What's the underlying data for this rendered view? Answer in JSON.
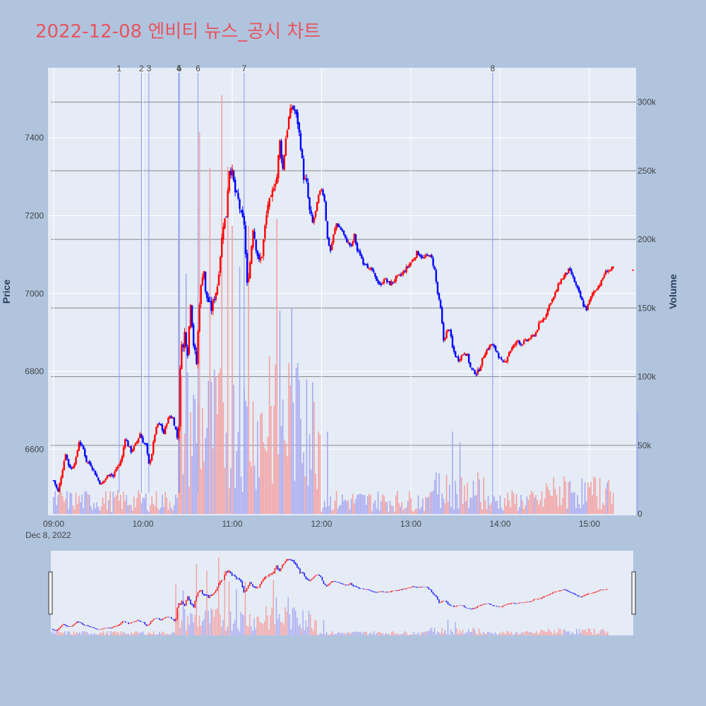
{
  "title": "2022-12-08 엔비티 뉴스_공시 차트",
  "colors": {
    "background": "#b0c4de",
    "plot_bg": "#e5ecf6",
    "title": "#e8545f",
    "up": "#ff0000",
    "down": "#0000ff",
    "up_volume": "#f4a0a0",
    "down_volume": "#a8a8f0",
    "news_line": "#8899ee"
  },
  "chart_data": {
    "type": "candlestick",
    "title": "2022-12-08 엔비티 뉴스_공시 차트",
    "xlabel": "",
    "ylabel": "Price",
    "y2label": "Volume",
    "x_ticks": [
      "09:00",
      "10:00",
      "11:00",
      "12:00",
      "13:00",
      "14:00",
      "15:00"
    ],
    "x_date_label": "Dec 8, 2022",
    "y_ticks": [
      6600,
      6800,
      7000,
      7200,
      7400
    ],
    "y2_ticks": [
      "0",
      "50k",
      "100k",
      "150k",
      "200k",
      "250k",
      "300k"
    ],
    "y2_tick_values": [
      0,
      50000,
      100000,
      150000,
      200000,
      250000,
      300000
    ],
    "ylim": [
      6430,
      7580
    ],
    "y2lim": [
      0,
      325000
    ],
    "x_range_minutes": [
      0,
      392
    ],
    "news_markers": [
      {
        "label": "1",
        "minute": 44
      },
      {
        "label": "2",
        "minute": 59
      },
      {
        "label": "3",
        "minute": 64
      },
      {
        "label": "4",
        "minute": 84
      },
      {
        "label": "5",
        "minute": 84.5
      },
      {
        "label": "6",
        "minute": 97
      },
      {
        "label": "7",
        "minute": 128
      },
      {
        "label": "8",
        "minute": 295
      }
    ],
    "price_path": [
      [
        0,
        6520
      ],
      [
        3,
        6490
      ],
      [
        6,
        6550
      ],
      [
        8,
        6590
      ],
      [
        10,
        6560
      ],
      [
        12,
        6550
      ],
      [
        15,
        6575
      ],
      [
        17,
        6620
      ],
      [
        20,
        6600
      ],
      [
        22,
        6570
      ],
      [
        25,
        6560
      ],
      [
        27,
        6545
      ],
      [
        30,
        6520
      ],
      [
        32,
        6510
      ],
      [
        35,
        6525
      ],
      [
        38,
        6540
      ],
      [
        40,
        6530
      ],
      [
        42,
        6550
      ],
      [
        44,
        6560
      ],
      [
        46,
        6580
      ],
      [
        48,
        6630
      ],
      [
        50,
        6610
      ],
      [
        52,
        6595
      ],
      [
        54,
        6605
      ],
      [
        56,
        6620
      ],
      [
        58,
        6640
      ],
      [
        60,
        6620
      ],
      [
        62,
        6610
      ],
      [
        64,
        6560
      ],
      [
        66,
        6590
      ],
      [
        68,
        6640
      ],
      [
        70,
        6665
      ],
      [
        72,
        6660
      ],
      [
        74,
        6640
      ],
      [
        76,
        6670
      ],
      [
        78,
        6685
      ],
      [
        80,
        6680
      ],
      [
        82,
        6650
      ],
      [
        83,
        6630
      ],
      [
        84,
        6660
      ],
      [
        85,
        6800
      ],
      [
        86,
        6880
      ],
      [
        87,
        6860
      ],
      [
        88,
        6900
      ],
      [
        90,
        6850
      ],
      [
        92,
        6980
      ],
      [
        94,
        6870
      ],
      [
        96,
        6820
      ],
      [
        98,
        6980
      ],
      [
        100,
        7050
      ],
      [
        101,
        7060
      ],
      [
        102,
        7000
      ],
      [
        104,
        6980
      ],
      [
        106,
        6960
      ],
      [
        108,
        6990
      ],
      [
        110,
        7020
      ],
      [
        112,
        7100
      ],
      [
        114,
        7180
      ],
      [
        116,
        7200
      ],
      [
        117,
        7270
      ],
      [
        118,
        7320
      ],
      [
        120,
        7310
      ],
      [
        122,
        7260
      ],
      [
        124,
        7240
      ],
      [
        126,
        7200
      ],
      [
        128,
        7180
      ],
      [
        129,
        7100
      ],
      [
        130,
        7020
      ],
      [
        132,
        7080
      ],
      [
        134,
        7170
      ],
      [
        136,
        7120
      ],
      [
        138,
        7080
      ],
      [
        140,
        7100
      ],
      [
        142,
        7170
      ],
      [
        144,
        7230
      ],
      [
        146,
        7240
      ],
      [
        148,
        7280
      ],
      [
        150,
        7300
      ],
      [
        151,
        7350
      ],
      [
        152,
        7390
      ],
      [
        154,
        7320
      ],
      [
        156,
        7400
      ],
      [
        158,
        7450
      ],
      [
        160,
        7480
      ],
      [
        162,
        7470
      ],
      [
        164,
        7440
      ],
      [
        166,
        7380
      ],
      [
        168,
        7300
      ],
      [
        170,
        7280
      ],
      [
        172,
        7210
      ],
      [
        174,
        7180
      ],
      [
        176,
        7210
      ],
      [
        178,
        7250
      ],
      [
        180,
        7270
      ],
      [
        182,
        7240
      ],
      [
        184,
        7140
      ],
      [
        186,
        7110
      ],
      [
        188,
        7150
      ],
      [
        190,
        7180
      ],
      [
        192,
        7170
      ],
      [
        194,
        7160
      ],
      [
        196,
        7140
      ],
      [
        198,
        7130
      ],
      [
        200,
        7120
      ],
      [
        202,
        7150
      ],
      [
        204,
        7110
      ],
      [
        206,
        7100
      ],
      [
        208,
        7080
      ],
      [
        210,
        7080
      ],
      [
        212,
        7060
      ],
      [
        214,
        7060
      ],
      [
        216,
        7040
      ],
      [
        218,
        7030
      ],
      [
        220,
        7020
      ],
      [
        222,
        7040
      ],
      [
        224,
        7030
      ],
      [
        226,
        7025
      ],
      [
        228,
        7030
      ],
      [
        230,
        7040
      ],
      [
        232,
        7045
      ],
      [
        234,
        7050
      ],
      [
        236,
        7060
      ],
      [
        238,
        7070
      ],
      [
        240,
        7080
      ],
      [
        242,
        7090
      ],
      [
        244,
        7105
      ],
      [
        246,
        7100
      ],
      [
        248,
        7090
      ],
      [
        250,
        7095
      ],
      [
        252,
        7100
      ],
      [
        254,
        7090
      ],
      [
        256,
        7060
      ],
      [
        258,
        7000
      ],
      [
        260,
        6960
      ],
      [
        262,
        6880
      ],
      [
        264,
        6900
      ],
      [
        266,
        6910
      ],
      [
        268,
        6860
      ],
      [
        270,
        6840
      ],
      [
        272,
        6830
      ],
      [
        274,
        6840
      ],
      [
        276,
        6850
      ],
      [
        278,
        6840
      ],
      [
        280,
        6810
      ],
      [
        282,
        6800
      ],
      [
        284,
        6795
      ],
      [
        286,
        6805
      ],
      [
        288,
        6830
      ],
      [
        290,
        6850
      ],
      [
        292,
        6860
      ],
      [
        294,
        6870
      ],
      [
        296,
        6860
      ],
      [
        298,
        6850
      ],
      [
        300,
        6830
      ],
      [
        302,
        6820
      ],
      [
        304,
        6830
      ],
      [
        306,
        6850
      ],
      [
        308,
        6860
      ],
      [
        310,
        6870
      ],
      [
        312,
        6880
      ],
      [
        314,
        6870
      ],
      [
        316,
        6875
      ],
      [
        318,
        6880
      ],
      [
        320,
        6885
      ],
      [
        322,
        6890
      ],
      [
        324,
        6900
      ],
      [
        326,
        6920
      ],
      [
        328,
        6930
      ],
      [
        330,
        6940
      ],
      [
        332,
        6960
      ],
      [
        334,
        6980
      ],
      [
        336,
        6990
      ],
      [
        338,
        7010
      ],
      [
        340,
        7030
      ],
      [
        342,
        7040
      ],
      [
        344,
        7050
      ],
      [
        346,
        7060
      ],
      [
        348,
        7050
      ],
      [
        350,
        7030
      ],
      [
        352,
        7010
      ],
      [
        354,
        6990
      ],
      [
        356,
        6970
      ],
      [
        358,
        6960
      ],
      [
        360,
        6980
      ],
      [
        362,
        7000
      ],
      [
        364,
        7010
      ],
      [
        366,
        7020
      ],
      [
        368,
        7030
      ],
      [
        370,
        7050
      ],
      [
        372,
        7060
      ],
      [
        374,
        7060
      ],
      [
        376,
        7065
      ]
    ],
    "volume_spikes": [
      {
        "minute": 84,
        "volume": 200000,
        "up": true
      },
      {
        "minute": 89,
        "volume": 175000,
        "up": false
      },
      {
        "minute": 98,
        "volume": 278000,
        "up": true
      },
      {
        "minute": 105,
        "volume": 252000,
        "up": true
      },
      {
        "minute": 113,
        "volume": 305000,
        "up": true
      },
      {
        "minute": 117,
        "volume": 253000,
        "up": true
      },
      {
        "minute": 120,
        "volume": 210000,
        "up": true
      },
      {
        "minute": 125,
        "volume": 180000,
        "up": false
      },
      {
        "minute": 131,
        "volume": 210000,
        "up": true
      },
      {
        "minute": 145,
        "volume": 115000,
        "up": true
      },
      {
        "minute": 150,
        "volume": 215000,
        "up": true
      },
      {
        "minute": 152,
        "volume": 148000,
        "up": false
      },
      {
        "minute": 158,
        "volume": 110000,
        "up": true
      },
      {
        "minute": 160,
        "volume": 150000,
        "up": false
      },
      {
        "minute": 164,
        "volume": 110000,
        "up": false
      },
      {
        "minute": 170,
        "volume": 98000,
        "up": false
      },
      {
        "minute": 184,
        "volume": 60000,
        "up": false
      },
      {
        "minute": 268,
        "volume": 60000,
        "up": false
      },
      {
        "minute": 273,
        "volume": 52000,
        "up": false
      },
      {
        "minute": 392,
        "volume": 75000,
        "up": false
      }
    ]
  }
}
